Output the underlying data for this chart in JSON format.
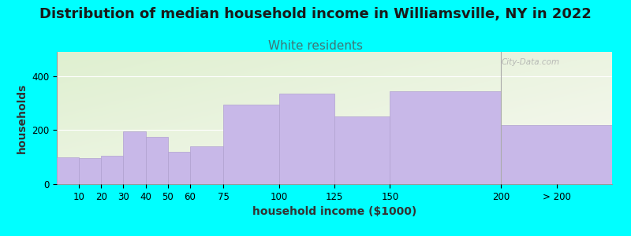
{
  "title": "Distribution of median household income in Williamsville, NY in 2022",
  "subtitle": "White residents",
  "xlabel": "household income ($1000)",
  "ylabel": "households",
  "background_color": "#00FFFF",
  "plot_bg_top_left": "#dff0d0",
  "plot_bg_bottom_right": "#f8f8f2",
  "bar_color": "#c8b8e8",
  "bar_edge_color": "#b0a0d0",
  "categories": [
    "10",
    "20",
    "30",
    "40",
    "50",
    "60",
    "75",
    "100",
    "125",
    "150",
    "200",
    "> 200"
  ],
  "left_edges": [
    0,
    10,
    20,
    30,
    40,
    50,
    60,
    75,
    100,
    125,
    150,
    200
  ],
  "right_edges": [
    10,
    20,
    30,
    40,
    50,
    60,
    75,
    100,
    125,
    150,
    200,
    250
  ],
  "values": [
    100,
    95,
    105,
    195,
    175,
    120,
    140,
    295,
    335,
    250,
    345,
    220
  ],
  "ylim": [
    0,
    490
  ],
  "xlim": [
    0,
    250
  ],
  "yticks": [
    0,
    200,
    400
  ],
  "xtick_positions": [
    10,
    20,
    30,
    40,
    50,
    60,
    75,
    100,
    125,
    150,
    200,
    225
  ],
  "xtick_labels": [
    "10",
    "20",
    "30",
    "40",
    "50",
    "60",
    "75",
    "100",
    "125",
    "150",
    "200",
    "> 200"
  ],
  "vline_x": 200,
  "title_fontsize": 13,
  "subtitle_fontsize": 11,
  "subtitle_color": "#407575",
  "axis_label_fontsize": 10,
  "tick_fontsize": 8.5,
  "watermark": "City-Data.com"
}
